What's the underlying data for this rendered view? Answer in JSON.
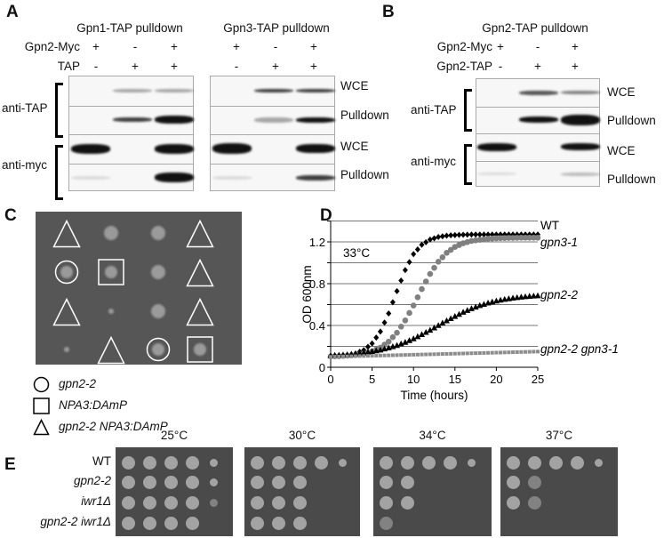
{
  "panels": {
    "a": "A",
    "b": "B",
    "c": "C",
    "d": "D",
    "e": "E"
  },
  "panel_a": {
    "blot1_title": "Gpn1-TAP pulldown",
    "blot2_title": "Gpn3-TAP pulldown",
    "row1_label": "Gpn2-Myc",
    "row2_label": "TAP",
    "row1_signs": [
      "+",
      "-",
      "+"
    ],
    "row2_signs": [
      "-",
      "+",
      "+"
    ],
    "antibody1": "anti-TAP",
    "antibody2": "anti-myc",
    "strip_labels": [
      "WCE",
      "Pulldown",
      "WCE",
      "Pulldown"
    ]
  },
  "panel_b": {
    "title": "Gpn2-TAP pulldown",
    "row1_label": "Gpn2-Myc",
    "row2_label": "Gpn2-TAP",
    "row1_signs": [
      "+",
      "-",
      "+"
    ],
    "row2_signs": [
      "-",
      "+",
      "+"
    ],
    "antibody1": "anti-TAP",
    "antibody2": "anti-myc",
    "strip_labels": [
      "WCE",
      "Pulldown",
      "WCE",
      "Pulldown"
    ]
  },
  "panel_c": {
    "legend": [
      {
        "shape": "circle",
        "label": "gpn2-2"
      },
      {
        "shape": "square",
        "label": "NPA3:DAmP"
      },
      {
        "shape": "triangle",
        "label": "gpn2-2 NPA3:DAmP"
      }
    ],
    "grid": [
      [
        "triangle",
        "spot",
        "spot",
        "triangle"
      ],
      [
        "circle",
        "square",
        "spot",
        "triangle"
      ],
      [
        "triangle",
        "small",
        "spot",
        "triangle"
      ],
      [
        "small",
        "triangle",
        "circle",
        "square"
      ]
    ]
  },
  "chart_data": {
    "type": "scatter",
    "annotation": "33°C",
    "xlabel": "Time (hours)",
    "ylabel": "OD 600nm",
    "xlim": [
      0,
      25
    ],
    "ylim": [
      0,
      1.4
    ],
    "xticks": [
      "0",
      "5",
      "10",
      "15",
      "20",
      "25"
    ],
    "yticks": [
      "0",
      "0.4",
      "0.8",
      "1.2"
    ],
    "grid": "horizontal every 0.2",
    "x": [
      0,
      1,
      2,
      3,
      4,
      5,
      6,
      7,
      8,
      9,
      10,
      11,
      12,
      13,
      14,
      15,
      16,
      17,
      18,
      19,
      20,
      21,
      22,
      23,
      24,
      25
    ],
    "series": [
      {
        "name": "WT",
        "marker": "diamond",
        "color": "#000000",
        "values": [
          0.103,
          0.107,
          0.115,
          0.131,
          0.164,
          0.228,
          0.341,
          0.515,
          0.729,
          0.93,
          1.083,
          1.172,
          1.222,
          1.247,
          1.26,
          1.265,
          1.268,
          1.27,
          1.27,
          1.27,
          1.27,
          1.27,
          1.27,
          1.27,
          1.27,
          1.27
        ]
      },
      {
        "name": "gpn3-1",
        "marker": "circle",
        "color": "#808080",
        "values": [
          0.104,
          0.106,
          0.111,
          0.118,
          0.131,
          0.153,
          0.188,
          0.245,
          0.33,
          0.448,
          0.591,
          0.748,
          0.893,
          1.01,
          1.095,
          1.152,
          1.187,
          1.209,
          1.22,
          1.23,
          1.235,
          1.237,
          1.238,
          1.24,
          1.24,
          1.24
        ]
      },
      {
        "name": "gpn2-2",
        "marker": "triangle",
        "color": "#000000",
        "values": [
          0.112,
          0.116,
          0.121,
          0.129,
          0.138,
          0.151,
          0.165,
          0.186,
          0.209,
          0.239,
          0.273,
          0.313,
          0.355,
          0.4,
          0.445,
          0.487,
          0.527,
          0.561,
          0.591,
          0.615,
          0.635,
          0.65,
          0.662,
          0.672,
          0.679,
          0.685
        ]
      },
      {
        "name": "gpn2-2 gpn3-1",
        "marker": "square",
        "color": "#8c8c8c",
        "values": [
          0.1,
          0.102,
          0.104,
          0.106,
          0.108,
          0.11,
          0.112,
          0.114,
          0.116,
          0.118,
          0.12,
          0.122,
          0.124,
          0.126,
          0.128,
          0.13,
          0.132,
          0.134,
          0.136,
          0.138,
          0.14,
          0.142,
          0.144,
          0.146,
          0.148,
          0.15
        ]
      }
    ]
  },
  "panel_e": {
    "temperatures": [
      "25°C",
      "30°C",
      "34°C",
      "37°C"
    ],
    "strains": [
      "WT",
      "gpn2-2",
      "iwr1Δ",
      "gpn2-2 iwr1Δ"
    ],
    "growth_spots": [
      [
        5,
        5,
        4.5,
        4
      ],
      [
        5,
        3,
        3,
        3
      ],
      [
        5,
        2,
        2,
        0.5
      ],
      [
        5,
        1.5,
        1.5,
        0
      ]
    ]
  }
}
